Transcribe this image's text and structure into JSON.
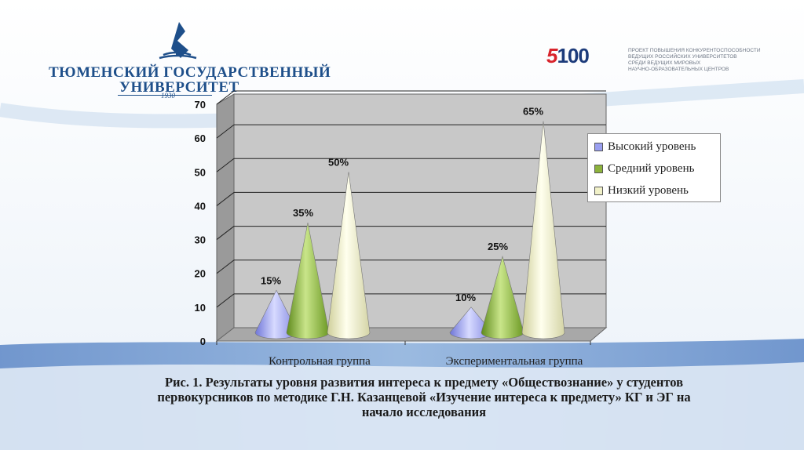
{
  "header": {
    "university_line1": "ТЮМЕНСКИЙ ГОСУДАРСТВЕННЫЙ",
    "university_line2": "УНИВЕРСИТЕТ",
    "university_year": "1930",
    "logo_5100_prefix": "5",
    "logo_5100_suffix": "100",
    "project_lines": [
      "ПРОЕКТ ПОВЫШЕНИЯ КОНКУРЕНТОСПОСОБНОСТИ",
      "ВЕДУЩИХ РОССИЙСКИХ УНИВЕРСИТЕТОВ",
      "СРЕДИ ВЕДУЩИХ МИРОВЫХ",
      "НАУЧНО-ОБРАЗОВАТЕЛЬНЫХ ЦЕНТРОВ"
    ]
  },
  "colors": {
    "brand_blue": "#1e4f8a",
    "bg_band": "#5b86c6",
    "plot_wall": "#c8c8c8",
    "series": [
      "#9a9ff0",
      "#8db33c",
      "#f1f1c8"
    ]
  },
  "chart_data": {
    "type": "bar",
    "shape": "cone",
    "categories": [
      "Контрольная группа",
      "Экспериментальная группа"
    ],
    "series": [
      {
        "name": "Высокий уровень",
        "values": [
          15,
          10
        ],
        "labels": [
          "15%",
          "10%"
        ]
      },
      {
        "name": "Средний уровень",
        "values": [
          35,
          25
        ],
        "labels": [
          "35%",
          "25%"
        ]
      },
      {
        "name": "Низкий уровень",
        "values": [
          50,
          65
        ],
        "labels": [
          "50%",
          "65%"
        ]
      }
    ],
    "yticks": [
      "0",
      "10",
      "20",
      "30",
      "40",
      "50",
      "60",
      "70"
    ],
    "ylim": [
      0,
      70
    ],
    "grid": true,
    "legend_position": "right"
  },
  "caption": {
    "line1": "Рис. 1. Результаты уровня развития интереса к предмету «Обществознание» у студентов",
    "line2": "первокурсников по методике Г.Н. Казанцевой «Изучение интереса к предмету» КГ и ЭГ на",
    "line3": "начало исследования"
  }
}
